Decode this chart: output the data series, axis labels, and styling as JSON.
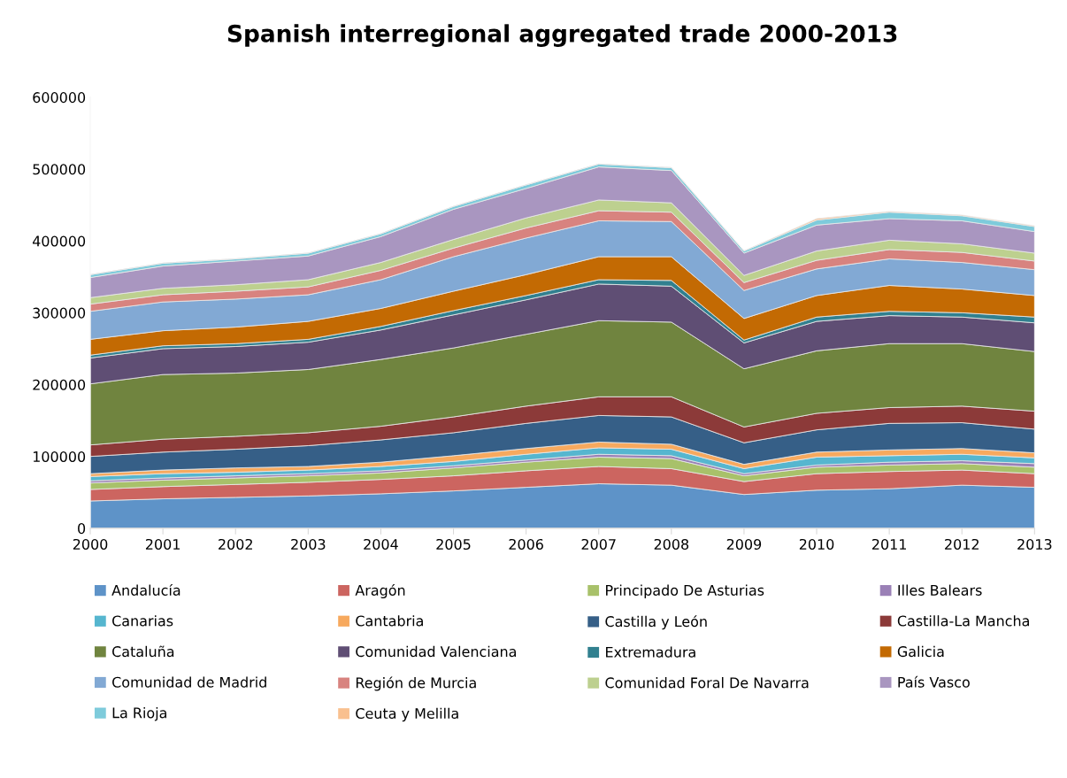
{
  "chart_data": {
    "type": "area",
    "stacked": true,
    "title": "Spanish interregional aggregated trade 2000-2013",
    "x": [
      2000,
      2001,
      2002,
      2003,
      2004,
      2005,
      2006,
      2007,
      2008,
      2009,
      2010,
      2011,
      2012,
      2013
    ],
    "xlim": [
      2000,
      2013
    ],
    "xticks": [
      2000,
      2001,
      2002,
      2003,
      2004,
      2005,
      2006,
      2007,
      2008,
      2009,
      2010,
      2011,
      2012,
      2013
    ],
    "ylim": [
      0,
      600000
    ],
    "yticks": [
      0,
      100000,
      200000,
      300000,
      400000,
      500000,
      600000
    ],
    "grid": false,
    "legend": "bottom",
    "series": [
      {
        "name": "Andalucía",
        "color": "#5e93c8",
        "values": [
          38000,
          41000,
          43000,
          45000,
          48000,
          52000,
          57000,
          62000,
          60000,
          47000,
          53000,
          55000,
          60000,
          57000
        ]
      },
      {
        "name": "Aragón",
        "color": "#cc6560",
        "values": [
          16000,
          17000,
          18000,
          19000,
          20000,
          21000,
          23000,
          24000,
          23000,
          18000,
          23000,
          24000,
          21000,
          19000
        ]
      },
      {
        "name": "Principado De Asturias",
        "color": "#a8c16a",
        "values": [
          9000,
          9000,
          9000,
          9000,
          9000,
          11000,
          12000,
          13000,
          14000,
          8000,
          9000,
          9000,
          9000,
          9000
        ]
      },
      {
        "name": "Illes Balears",
        "color": "#9a80b6",
        "values": [
          3000,
          3000,
          3000,
          3000,
          3000,
          3000,
          3000,
          4000,
          4000,
          3000,
          3000,
          4000,
          4000,
          5000
        ]
      },
      {
        "name": "Canarias",
        "color": "#56b6cf",
        "values": [
          6000,
          6000,
          5000,
          5000,
          6000,
          6000,
          8000,
          9000,
          9000,
          7000,
          11000,
          9000,
          9000,
          8000
        ]
      },
      {
        "name": "Cantabria",
        "color": "#f7a95e",
        "values": [
          4000,
          5000,
          6000,
          5000,
          6000,
          8000,
          8000,
          8000,
          7000,
          6000,
          7000,
          8000,
          8000,
          7000
        ]
      },
      {
        "name": "Castilla y León",
        "color": "#365f87",
        "values": [
          24000,
          25000,
          26000,
          29000,
          31000,
          32000,
          35000,
          37000,
          38000,
          30000,
          31000,
          37000,
          36000,
          33000
        ]
      },
      {
        "name": "Castilla-La Mancha",
        "color": "#8c3a39",
        "values": [
          16000,
          18000,
          18000,
          18000,
          19000,
          22000,
          24000,
          26000,
          28000,
          22000,
          23000,
          22000,
          23000,
          25000
        ]
      },
      {
        "name": "Cataluña",
        "color": "#70843f",
        "values": [
          85000,
          90000,
          88000,
          88000,
          93000,
          96000,
          100000,
          106000,
          104000,
          81000,
          87000,
          89000,
          87000,
          83000
        ]
      },
      {
        "name": "Comunidad Valenciana",
        "color": "#5f4e74",
        "values": [
          36000,
          36000,
          37000,
          38000,
          41000,
          46000,
          48000,
          51000,
          50000,
          36000,
          41000,
          39000,
          37000,
          40000
        ]
      },
      {
        "name": "Extremadura",
        "color": "#31808f",
        "values": [
          4000,
          4000,
          4000,
          4000,
          5000,
          6000,
          6000,
          6000,
          8000,
          4000,
          6000,
          6000,
          6000,
          8000
        ]
      },
      {
        "name": "Galicia",
        "color": "#c36a03",
        "values": [
          22000,
          21000,
          23000,
          25000,
          25000,
          27000,
          29000,
          32000,
          33000,
          30000,
          30000,
          36000,
          33000,
          30000
        ]
      },
      {
        "name": "Comunidad de Madrid",
        "color": "#82a9d4",
        "values": [
          39000,
          40000,
          39000,
          37000,
          40000,
          48000,
          51000,
          50000,
          49000,
          39000,
          37000,
          37000,
          37000,
          36000
        ]
      },
      {
        "name": "Región de Murcia",
        "color": "#d8837f",
        "values": [
          10000,
          10000,
          11000,
          11000,
          13000,
          12000,
          14000,
          14000,
          13000,
          11000,
          12000,
          13000,
          14000,
          12000
        ]
      },
      {
        "name": "Comunidad Foral De Navarra",
        "color": "#bdd08f",
        "values": [
          9000,
          9000,
          9000,
          10000,
          11000,
          12000,
          14000,
          15000,
          13000,
          10000,
          13000,
          13000,
          12000,
          11000
        ]
      },
      {
        "name": "País Vasco",
        "color": "#a996c0",
        "values": [
          28000,
          31000,
          33000,
          33000,
          36000,
          42000,
          41000,
          46000,
          45000,
          31000,
          36000,
          30000,
          32000,
          30000
        ]
      },
      {
        "name": "La Rioja",
        "color": "#7ecbdb",
        "values": [
          4000,
          4000,
          3000,
          4000,
          4000,
          4000,
          5000,
          4000,
          4000,
          3000,
          7000,
          9000,
          7000,
          7000
        ]
      },
      {
        "name": "Ceuta y Melilla",
        "color": "#f9c08f",
        "values": [
          0,
          0,
          0,
          0,
          0,
          0,
          0,
          0,
          0,
          0,
          2000,
          1000,
          1000,
          1000
        ]
      }
    ]
  }
}
